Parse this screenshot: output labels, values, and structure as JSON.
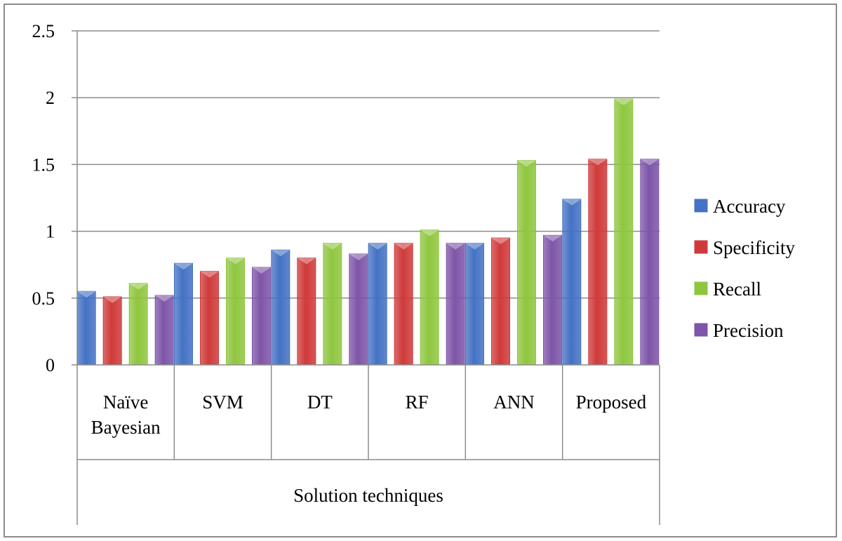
{
  "chart_data": {
    "type": "bar",
    "categories": [
      "Naïve Bayesian",
      "SVM",
      "DT",
      "RF",
      "ANN",
      "Proposed"
    ],
    "series": [
      {
        "name": "Accuracy",
        "color": "#4472c4",
        "values": [
          0.55,
          0.76,
          0.86,
          0.91,
          0.91,
          1.24
        ]
      },
      {
        "name": "Specificity",
        "color": "#d03a3a",
        "values": [
          0.51,
          0.7,
          0.8,
          0.91,
          0.95,
          1.54
        ]
      },
      {
        "name": "Recall",
        "color": "#8fc63f",
        "values": [
          0.61,
          0.8,
          0.91,
          1.01,
          1.53,
          1.99
        ]
      },
      {
        "name": "Precision",
        "color": "#7e55a8",
        "values": [
          0.52,
          0.73,
          0.83,
          0.91,
          0.97,
          1.54
        ]
      }
    ],
    "title": "",
    "xlabel": "Solution techniques",
    "ylabel": "",
    "ylim": [
      0,
      2.5
    ],
    "yticks": [
      "0",
      "0.5",
      "1",
      "1.5",
      "2",
      "2.5"
    ],
    "grid": true,
    "legend": "right"
  }
}
